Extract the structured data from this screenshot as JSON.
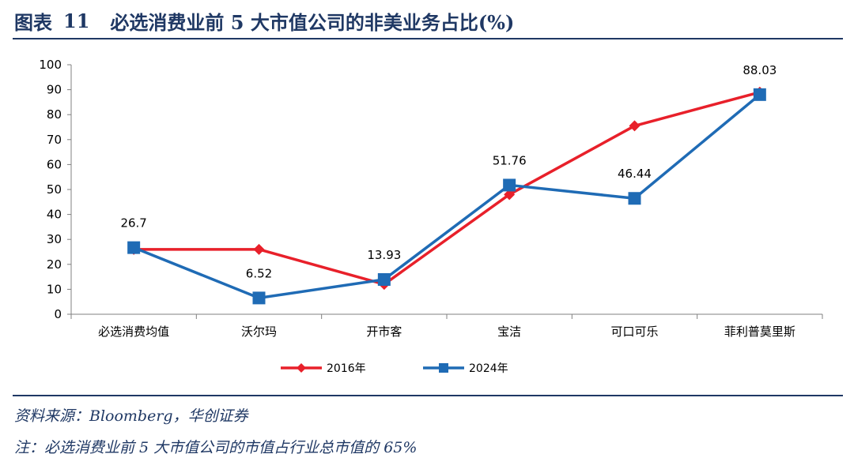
{
  "header": {
    "figure_label": "图表",
    "figure_number": "11",
    "title": "必选消费业前 5 大市值公司的非美业务占比(%)"
  },
  "chart_data": {
    "type": "line",
    "title": "必选消费业前 5 大市值公司的非美业务占比(%)",
    "xlabel": "",
    "ylabel": "",
    "categories": [
      "必选消费均值",
      "沃尔玛",
      "开市客",
      "宝洁",
      "可口可乐",
      "菲利普莫里斯"
    ],
    "ylim": [
      0,
      100
    ],
    "yticks": [
      "0",
      "10",
      "20",
      "30",
      "40",
      "50",
      "60",
      "70",
      "80",
      "90",
      "100"
    ],
    "grid": false,
    "legend_position": "bottom-center",
    "series": [
      {
        "name": "2016年",
        "color": "#e8202a",
        "marker": "diamond",
        "values": [
          26,
          26,
          12,
          48,
          75.5,
          89
        ]
      },
      {
        "name": "2024年",
        "color": "#1f6bb5",
        "marker": "square",
        "values": [
          26.7,
          6.52,
          13.93,
          51.76,
          46.44,
          88.03
        ]
      }
    ],
    "data_labels": [
      {
        "series": "2024年",
        "category": "必选消费均值",
        "text": "26.7"
      },
      {
        "series": "2024年",
        "category": "沃尔玛",
        "text": "6.52"
      },
      {
        "series": "2024年",
        "category": "开市客",
        "text": "13.93"
      },
      {
        "series": "2024年",
        "category": "宝洁",
        "text": "51.76"
      },
      {
        "series": "2024年",
        "category": "可口可乐",
        "text": "46.44"
      },
      {
        "series": "2024年",
        "category": "菲利普莫里斯",
        "text": "88.03"
      }
    ]
  },
  "notes": {
    "source": "资料来源：Bloomberg，华创证券",
    "footnote": "注：必选消费业前 5 大市值公司的市值占行业总市值的 65%"
  },
  "colors": {
    "brand": "#1f3864",
    "axis": "#808080"
  }
}
